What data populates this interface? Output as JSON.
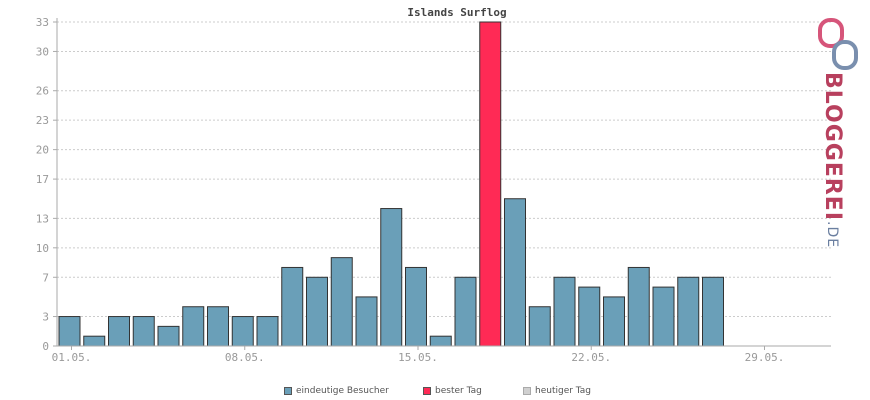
{
  "chart_data": {
    "type": "bar",
    "title": "Islands Surflog",
    "x_tick_labels": [
      "01.05.",
      "08.05.",
      "15.05.",
      "22.05.",
      "29.05."
    ],
    "y_tick_labels": [
      "0",
      "3",
      "7",
      "10",
      "13",
      "17",
      "20",
      "23",
      "26",
      "30",
      "33"
    ],
    "ylim": [
      0,
      33
    ],
    "grid": true,
    "legend_position": "bottom",
    "series": [
      {
        "name": "eindeutige Besucher",
        "color": "#6a9fb8",
        "values": [
          3,
          1,
          3,
          3,
          2,
          4,
          4,
          3,
          3,
          8,
          7,
          9,
          5,
          14,
          8,
          1,
          7,
          33,
          15,
          4,
          7,
          6,
          5,
          8,
          6,
          7,
          7,
          0,
          0,
          0,
          0
        ]
      },
      {
        "name": "bester Tag",
        "color": "#ff2a55"
      },
      {
        "name": "heutiger Tag",
        "color": "#d0d0d0"
      }
    ],
    "best_day_index": 17
  },
  "logo": {
    "text": "BLOGGEREI",
    "suffix": ".DE"
  }
}
